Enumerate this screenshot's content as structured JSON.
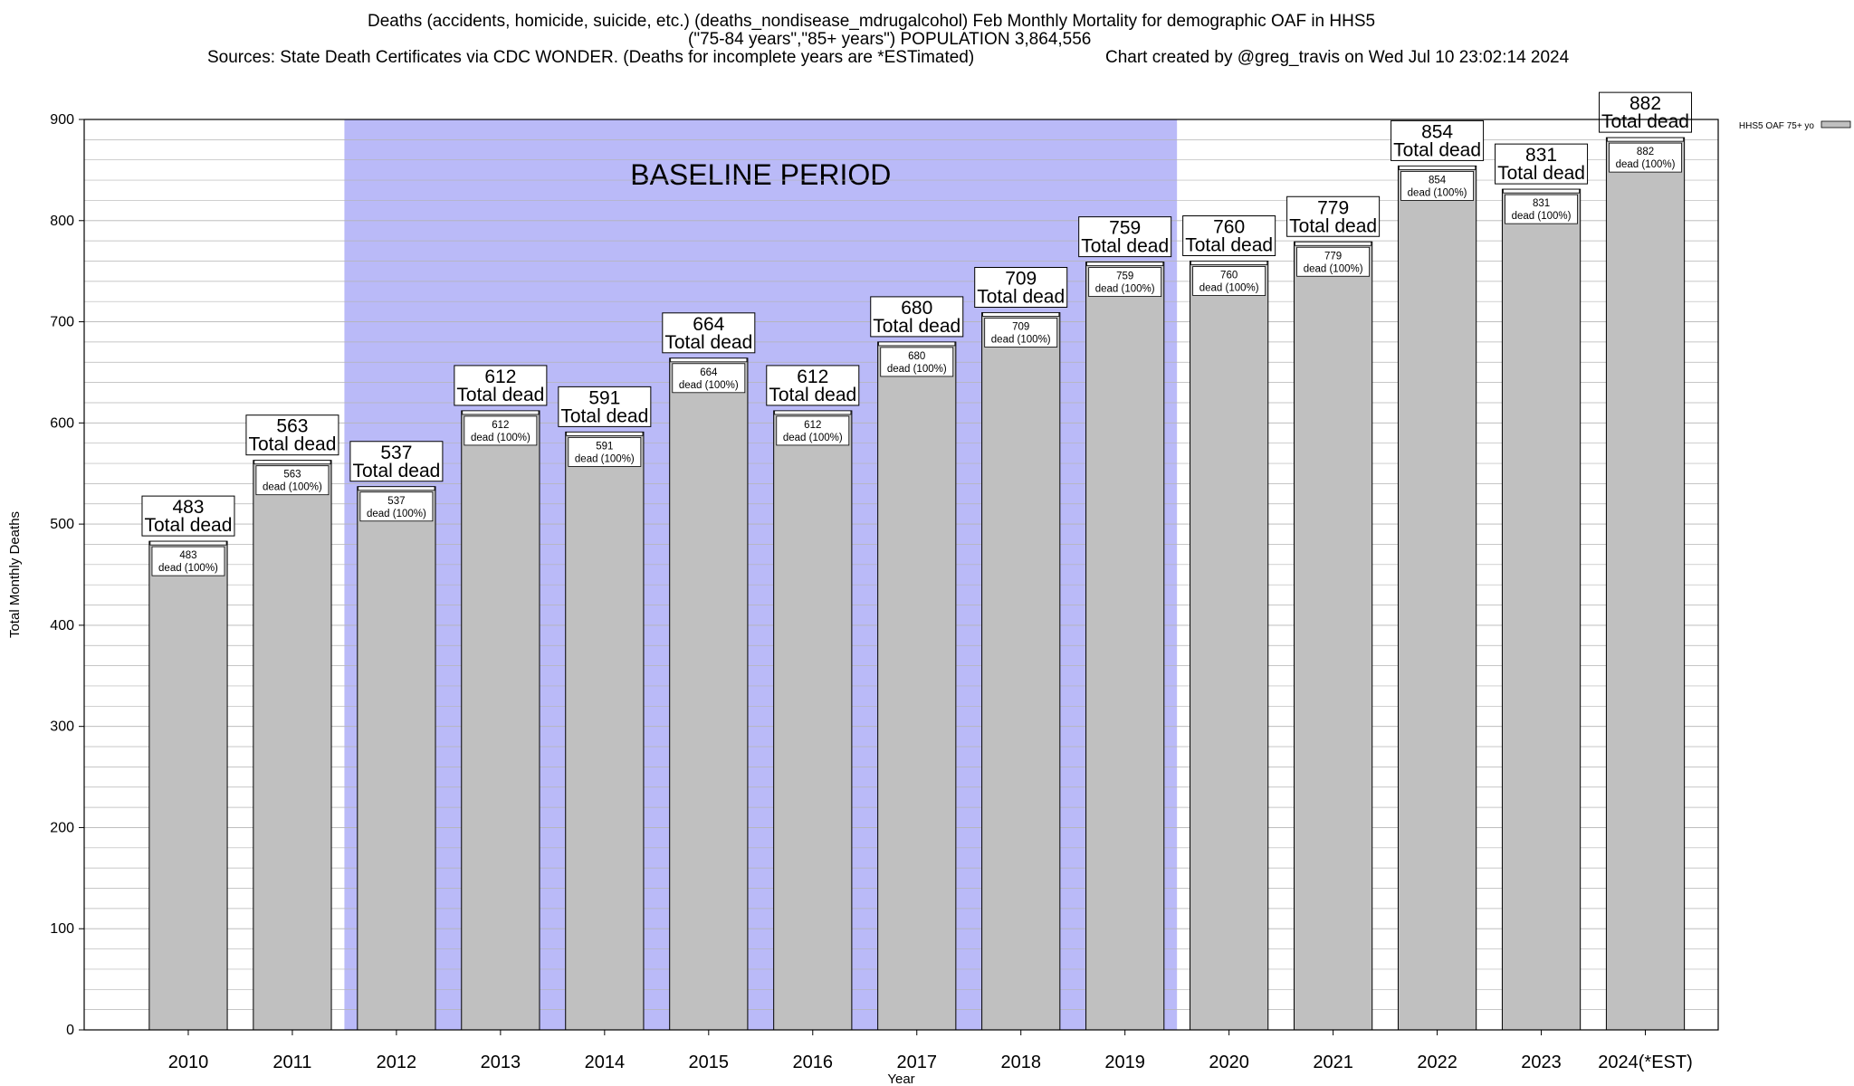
{
  "header": {
    "line1": "Deaths (accidents, homicide, suicide, etc.) (deaths_nondisease_mdrugalcohol) Feb Monthly Mortality for demographic OAF in HHS5",
    "line2": "(\"75-84 years\",\"85+ years\") POPULATION 3,864,556",
    "line3_left": "Sources: State Death Certificates via CDC WONDER. (Deaths for incomplete years are *ESTimated)",
    "line3_right": "Chart created by @greg_travis on Wed Jul 10 23:02:14 2024"
  },
  "chart_data": {
    "type": "bar",
    "title": "Deaths (accidents, homicide, suicide, etc.) (deaths_nondisease_mdrugalcohol) Feb Monthly Mortality for demographic OAF in HHS5",
    "xlabel": "Year",
    "ylabel": "Total Monthly Deaths",
    "categories": [
      "2010",
      "2011",
      "2012",
      "2013",
      "2014",
      "2015",
      "2016",
      "2017",
      "2018",
      "2019",
      "2020",
      "2021",
      "2022",
      "2023",
      "2024(*EST)"
    ],
    "series": [
      {
        "name": "HHS5 OAF 75+ yo",
        "values": [
          483,
          563,
          537,
          612,
          591,
          664,
          612,
          680,
          709,
          759,
          760,
          779,
          854,
          831,
          882
        ],
        "color": "#c0c0c0"
      }
    ],
    "ylim": [
      0,
      900
    ],
    "yticks": [
      0,
      100,
      200,
      300,
      400,
      500,
      600,
      700,
      800,
      900
    ],
    "grid": true,
    "legend": "top-right",
    "baseline_label": "BASELINE PERIOD",
    "baseline_range": [
      "2012",
      "2019"
    ],
    "baseline_color": "#babaf8",
    "total_label": "Total dead",
    "inner_label": "dead (100%)"
  }
}
